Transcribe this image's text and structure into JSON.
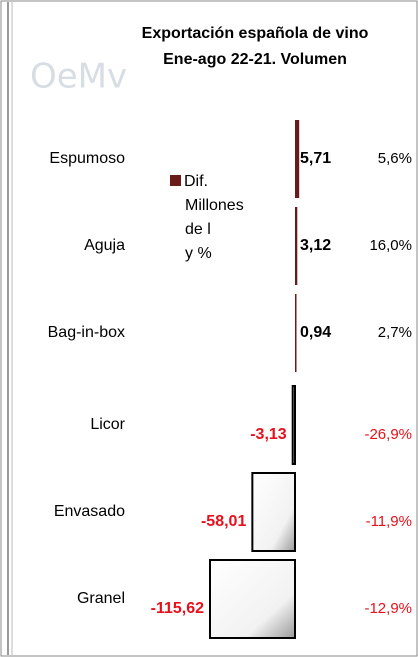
{
  "chart_data": {
    "type": "bar",
    "orientation": "horizontal",
    "title": "Exportación española de vino",
    "subtitle": "Ene-ago 22-21. Volumen",
    "logo": "OeMv",
    "legend": "Dif. Millones de l y %",
    "categories": [
      "Espumoso",
      "Aguja",
      "Bag-in-box",
      "Licor",
      "Envasado",
      "Granel"
    ],
    "values": [
      5.71,
      3.12,
      0.94,
      -3.13,
      -58.01,
      -115.62
    ],
    "value_labels": [
      "5,71",
      "3,12",
      "0,94",
      "-3,13",
      "-58,01",
      "-115,62"
    ],
    "change_labels": [
      "5,6%",
      "16,0%",
      "2,7%",
      "-26,9%",
      "-11,9%",
      "-12,9%"
    ],
    "positive_color": "#6b1a1a",
    "negative_color": "#ffffff"
  }
}
